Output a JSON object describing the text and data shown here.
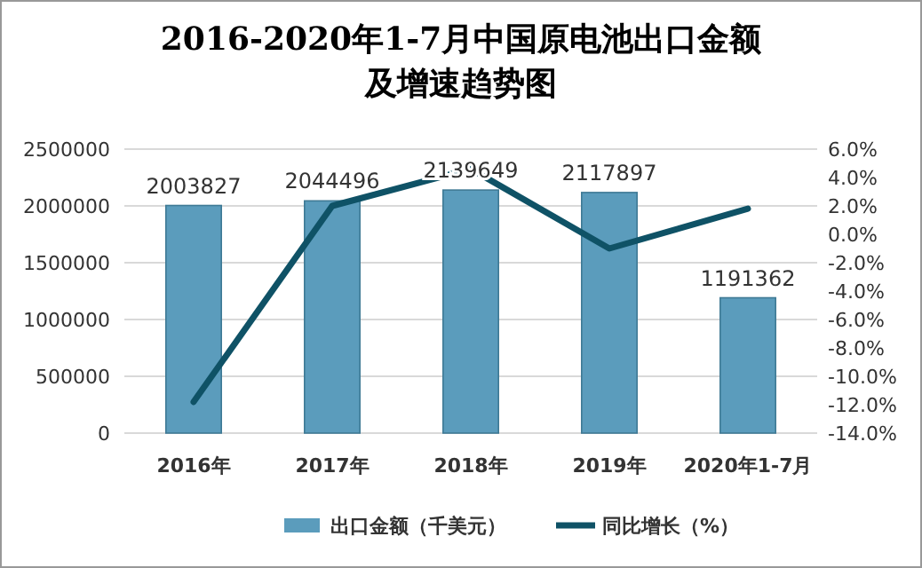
{
  "chart_data": {
    "type": "bar",
    "title": "2016-2020年1-7月中国原电池出口金额及增速趋势图",
    "categories": [
      "2016年",
      "2017年",
      "2018年",
      "2019年",
      "2020年1-7月"
    ],
    "series": [
      {
        "name": "出口金额（千美元）",
        "color": "#5b9cbc",
        "values": [
          2003827,
          2044496,
          2139649,
          2117897,
          1191362
        ],
        "value_labels": [
          "2003827",
          "2044496",
          "2139649",
          "2117897",
          "1191362"
        ]
      },
      {
        "name": "同比增长（%）",
        "type": "line",
        "axis": "y2",
        "color": "#0f5266",
        "values": [
          -11.8,
          2.0,
          4.6,
          -1.0,
          1.8
        ]
      }
    ],
    "ylim": [
      0,
      2500000
    ],
    "yticks": [
      0,
      500000,
      1000000,
      1500000,
      2000000,
      2500000
    ],
    "y2lim": [
      -14,
      6
    ],
    "y2ticks": [
      {
        "value": -14,
        "label": "-14.0%"
      },
      {
        "value": -12,
        "label": "-12.0%"
      },
      {
        "value": -10,
        "label": "-10.0%"
      },
      {
        "value": -8,
        "label": "-8.0%"
      },
      {
        "value": -6,
        "label": "-6.0%"
      },
      {
        "value": -4,
        "label": "-4.0%"
      },
      {
        "value": -2,
        "label": "-2.0%"
      },
      {
        "value": 0,
        "label": "0.0%"
      },
      {
        "value": 2,
        "label": "2.0%"
      },
      {
        "value": 4,
        "label": "4.0%"
      },
      {
        "value": 6,
        "label": "6.0%"
      }
    ],
    "grid": "y",
    "legend": "bottom",
    "marker": "none",
    "line_style": "solid"
  }
}
